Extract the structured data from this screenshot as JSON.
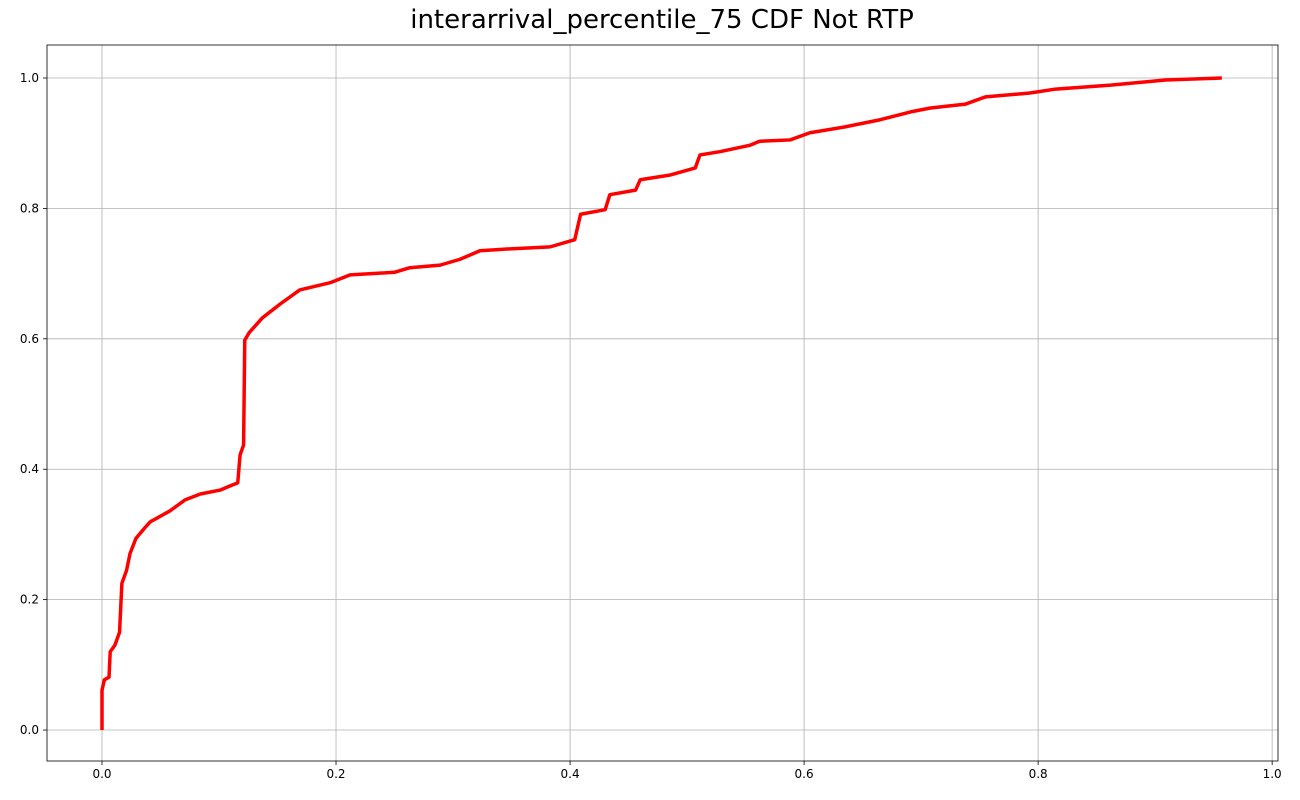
{
  "chart_data": {
    "type": "line",
    "title": "interarrival_percentile_75 CDF Not RTP",
    "x": [
      0,
      0,
      0.002,
      0.006,
      0.007,
      0.011,
      0.015,
      0.017,
      0.021,
      0.024,
      0.029,
      0.037,
      0.041,
      0.058,
      0.071,
      0.084,
      0.101,
      0.109,
      0.116,
      0.118,
      0.121,
      0.122,
      0.126,
      0.137,
      0.152,
      0.169,
      0.195,
      0.212,
      0.25,
      0.263,
      0.289,
      0.306,
      0.323,
      0.349,
      0.383,
      0.404,
      0.409,
      0.43,
      0.434,
      0.456,
      0.46,
      0.485,
      0.507,
      0.511,
      0.528,
      0.554,
      0.562,
      0.588,
      0.605,
      0.635,
      0.665,
      0.691,
      0.708,
      0.738,
      0.755,
      0.793,
      0.815,
      0.862,
      0.909,
      0.957
    ],
    "series": [
      {
        "name": "CDF",
        "color": "#ff0000",
        "values": [
          0,
          0.061,
          0.077,
          0.081,
          0.12,
          0.13,
          0.15,
          0.225,
          0.245,
          0.271,
          0.294,
          0.311,
          0.319,
          0.336,
          0.353,
          0.362,
          0.368,
          0.374,
          0.379,
          0.422,
          0.437,
          0.598,
          0.61,
          0.632,
          0.653,
          0.675,
          0.686,
          0.698,
          0.702,
          0.709,
          0.713,
          0.722,
          0.735,
          0.738,
          0.741,
          0.752,
          0.791,
          0.798,
          0.821,
          0.828,
          0.844,
          0.851,
          0.862,
          0.882,
          0.887,
          0.897,
          0.903,
          0.905,
          0.916,
          0.925,
          0.936,
          0.948,
          0.954,
          0.96,
          0.971,
          0.977,
          0.983,
          0.989,
          0.997,
          1.0
        ]
      }
    ],
    "xlim": [
      -0.047,
      1.005
    ],
    "ylim": [
      -0.0475,
      1.0506
    ],
    "xticks": [
      {
        "value": 0,
        "label": "0.0"
      },
      0.2,
      0.4,
      0.6,
      0.8,
      {
        "value": 1,
        "label": "1.0"
      }
    ],
    "yticks": [
      {
        "value": 0,
        "label": "0.0"
      },
      0.2,
      0.4,
      0.6,
      0.8,
      {
        "value": 1,
        "label": "1.0"
      }
    ],
    "grid": true
  }
}
